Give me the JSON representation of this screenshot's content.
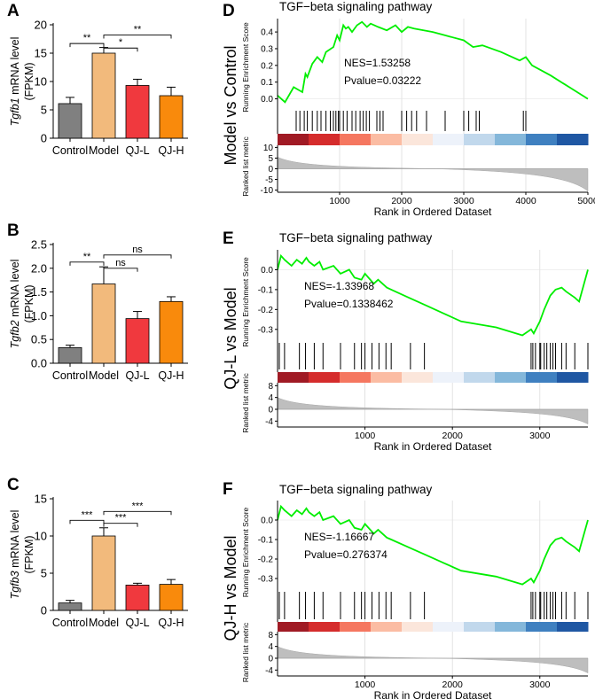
{
  "figure": {
    "bar_ylabel_suffix": "mRNA  level",
    "bar_ylabel_unit": "(FPKM)",
    "gsea_ylabel_res": "Running Enrichment Score",
    "gsea_ylabel_rank": "Ranked list metric",
    "gsea_xlabel": "Rank in Ordered Dataset"
  },
  "colors": {
    "Control": "#808080",
    "Model": "#f2ba7c",
    "QJ-L": "#f0393e",
    "QJ-H": "#f98a0c",
    "es_line": "#00ee00",
    "rank_fill": "#bebebe",
    "heat": [
      "#a01a24",
      "#d52c2c",
      "#f57760",
      "#fbbca3",
      "#fbe6db",
      "#edf2fa",
      "#c1d8ec",
      "#84b7da",
      "#3f80c0",
      "#1f57a3"
    ]
  },
  "chart_data": [
    {
      "panel": "A",
      "type": "bar",
      "gene": "Tgfb1",
      "categories": [
        "Control",
        "Model",
        "QJ-L",
        "QJ-H"
      ],
      "values": [
        6.1,
        15.0,
        9.3,
        7.5
      ],
      "errors": [
        1.1,
        1.0,
        1.1,
        1.5
      ],
      "ylim": [
        0,
        20
      ],
      "yticks": [
        0,
        5,
        10,
        15,
        20
      ],
      "ytick_labels": [
        "0",
        "5",
        "10",
        "15",
        "20"
      ],
      "sig": [
        {
          "from": 0,
          "to": 1,
          "label": "**",
          "y": 16.7
        },
        {
          "from": 1,
          "to": 2,
          "label": "*",
          "y": 15.9
        },
        {
          "from": 1,
          "to": 3,
          "label": "**",
          "y": 18.2
        }
      ]
    },
    {
      "panel": "B",
      "type": "bar",
      "gene": "Tgfb2",
      "categories": [
        "Control",
        "Model",
        "QJ-L",
        "QJ-H"
      ],
      "values": [
        0.33,
        1.67,
        0.94,
        1.3
      ],
      "errors": [
        0.05,
        0.36,
        0.15,
        0.1
      ],
      "ylim": [
        0,
        2.5
      ],
      "yticks": [
        0,
        0.5,
        1,
        1.5,
        2,
        2.5
      ],
      "ytick_labels": [
        "0.0",
        "0.5",
        "1.0",
        "1.5",
        "2.0",
        "2.5"
      ],
      "sig": [
        {
          "from": 0,
          "to": 1,
          "label": "**",
          "y": 2.13
        },
        {
          "from": 1,
          "to": 2,
          "label": "ns",
          "y": 2.0
        },
        {
          "from": 1,
          "to": 3,
          "label": "ns",
          "y": 2.28
        }
      ]
    },
    {
      "panel": "C",
      "type": "bar",
      "gene": "Tgfb3",
      "categories": [
        "Control",
        "Model",
        "QJ-L",
        "QJ-H"
      ],
      "values": [
        1.0,
        10.0,
        3.4,
        3.5
      ],
      "errors": [
        0.35,
        1.1,
        0.25,
        0.65
      ],
      "ylim": [
        0,
        15
      ],
      "yticks": [
        0,
        5,
        10,
        15
      ],
      "ytick_labels": [
        "0",
        "5",
        "10",
        "15"
      ],
      "sig": [
        {
          "from": 0,
          "to": 1,
          "label": "***",
          "y": 12.1
        },
        {
          "from": 1,
          "to": 2,
          "label": "***",
          "y": 11.7
        },
        {
          "from": 1,
          "to": 3,
          "label": "***",
          "y": 13.3
        }
      ]
    },
    {
      "panel": "D",
      "type": "line",
      "title": "TGF−beta signaling pathway",
      "comparison": "Model vs Control",
      "nes_text": "NES=1.53258",
      "pvalue_text": "Pvalue=0.03222",
      "xmax": 5000,
      "xticks": [
        1000,
        2000,
        3000,
        4000,
        5000
      ],
      "xtick_labels": [
        "1000",
        "2000",
        "3000",
        "4000",
        "5000"
      ],
      "es_ylim": [
        -0.05,
        0.48
      ],
      "es_yticks": [
        0,
        0.1,
        0.2,
        0.3,
        0.4
      ],
      "es_ytick_labels": [
        "0.0",
        "0.1",
        "0.2",
        "0.3",
        "0.4"
      ],
      "rank_ylim": [
        -11,
        11
      ],
      "rank_yticks": [
        -10,
        -5,
        0,
        5,
        10
      ],
      "rank_ytick_labels": [
        "-10",
        "-5",
        "0",
        "5",
        "10"
      ],
      "rank_start": 5.5,
      "rank_end": -10.5,
      "es_x": [
        0,
        120,
        260,
        400,
        450,
        480,
        560,
        640,
        720,
        780,
        900,
        960,
        1000,
        1060,
        1100,
        1140,
        1200,
        1280,
        1360,
        1440,
        1500,
        1620,
        1760,
        1900,
        2000,
        2100,
        2200,
        2500,
        2700,
        3000,
        3150,
        3300,
        3600,
        3900,
        4000,
        4100,
        4400,
        4700,
        5000
      ],
      "es_y": [
        0.02,
        -0.02,
        0.07,
        0.04,
        0.15,
        0.13,
        0.21,
        0.25,
        0.22,
        0.28,
        0.31,
        0.38,
        0.35,
        0.44,
        0.42,
        0.43,
        0.4,
        0.44,
        0.46,
        0.43,
        0.45,
        0.43,
        0.41,
        0.44,
        0.4,
        0.43,
        0.42,
        0.4,
        0.38,
        0.35,
        0.31,
        0.32,
        0.28,
        0.23,
        0.25,
        0.2,
        0.14,
        0.07,
        0.0
      ],
      "hits": [
        300,
        360,
        430,
        480,
        560,
        640,
        700,
        780,
        850,
        900,
        940,
        980,
        1000,
        1060,
        1120,
        1200,
        1260,
        1330,
        1380,
        1430,
        1480,
        1600,
        1650,
        1700,
        2000,
        2080,
        2160,
        2240,
        2400,
        2700,
        3000,
        3080,
        3200,
        3250,
        3960,
        4000
      ]
    },
    {
      "panel": "E",
      "type": "line",
      "title": "TGF−beta signaling pathway",
      "comparison": "QJ-L vs Model",
      "nes_text": "NES=-1.33968",
      "pvalue_text": "Pvalue=0.1338462",
      "xmax": 3550,
      "xticks": [
        1000,
        2000,
        3000
      ],
      "xtick_labels": [
        "1000",
        "2000",
        "3000"
      ],
      "es_ylim": [
        -0.35,
        0.1
      ],
      "es_yticks": [
        -0.3,
        -0.2,
        -0.1,
        0
      ],
      "es_ytick_labels": [
        "-0.3",
        "-0.2",
        "-0.1",
        "0.0"
      ],
      "rank_ylim": [
        -6,
        9
      ],
      "rank_yticks": [
        -4,
        0,
        4,
        8
      ],
      "rank_ytick_labels": [
        "-4",
        "0",
        "4",
        "8"
      ],
      "rank_start": 4.0,
      "rank_end": -5.0,
      "es_x": [
        0,
        40,
        80,
        160,
        220,
        280,
        330,
        360,
        420,
        480,
        520,
        640,
        720,
        820,
        880,
        960,
        1000,
        1100,
        1150,
        1250,
        1300,
        1500,
        1700,
        1900,
        2100,
        2500,
        2800,
        2900,
        2930,
        3000,
        3050,
        3120,
        3180,
        3250,
        3300,
        3400,
        3450,
        3550
      ],
      "es_y": [
        0.0,
        0.07,
        0.05,
        0.02,
        0.05,
        0.03,
        0.06,
        0.04,
        0.02,
        0.04,
        0.0,
        0.02,
        -0.02,
        0.0,
        -0.04,
        -0.05,
        -0.02,
        -0.07,
        -0.05,
        -0.09,
        -0.1,
        -0.14,
        -0.18,
        -0.22,
        -0.26,
        -0.29,
        -0.33,
        -0.3,
        -0.32,
        -0.26,
        -0.2,
        -0.13,
        -0.1,
        -0.09,
        -0.11,
        -0.14,
        -0.16,
        0.0
      ],
      "hits": [
        20,
        80,
        250,
        320,
        420,
        520,
        720,
        880,
        960,
        1000,
        1080,
        1160,
        1240,
        1300,
        1520,
        1680,
        2900,
        2920,
        2950,
        3000,
        3010,
        3050,
        3080,
        3120,
        3150,
        3180,
        3250,
        3300,
        3400,
        3550
      ]
    },
    {
      "panel": "F",
      "type": "line",
      "title": "TGF−beta signaling pathway",
      "comparison": "QJ-H vs Model",
      "nes_text": "NES=-1.16667",
      "pvalue_text": "Pvalue=0.276374",
      "xmax": 3550,
      "xticks": [
        1000,
        2000,
        3000
      ],
      "xtick_labels": [
        "1000",
        "2000",
        "3000"
      ],
      "es_ylim": [
        -0.35,
        0.1
      ],
      "es_yticks": [
        -0.3,
        -0.2,
        -0.1,
        0
      ],
      "es_ytick_labels": [
        "-0.3",
        "-0.2",
        "-0.1",
        "0.0"
      ],
      "rank_ylim": [
        -6,
        9
      ],
      "rank_yticks": [
        -4,
        0,
        4,
        8
      ],
      "rank_ytick_labels": [
        "-4",
        "0",
        "4",
        "8"
      ],
      "rank_start": 4.0,
      "rank_end": -5.0,
      "es_x": [
        0,
        40,
        80,
        160,
        220,
        280,
        330,
        360,
        420,
        480,
        520,
        640,
        720,
        820,
        880,
        960,
        1000,
        1100,
        1150,
        1250,
        1300,
        1500,
        1700,
        1900,
        2100,
        2500,
        2800,
        2900,
        2930,
        3000,
        3050,
        3120,
        3180,
        3250,
        3300,
        3400,
        3450,
        3550
      ],
      "es_y": [
        0.0,
        0.07,
        0.05,
        0.02,
        0.05,
        0.03,
        0.06,
        0.04,
        0.02,
        0.04,
        0.0,
        0.02,
        -0.02,
        0.0,
        -0.04,
        -0.05,
        -0.02,
        -0.07,
        -0.05,
        -0.09,
        -0.1,
        -0.14,
        -0.18,
        -0.22,
        -0.26,
        -0.29,
        -0.33,
        -0.3,
        -0.32,
        -0.26,
        -0.2,
        -0.13,
        -0.1,
        -0.09,
        -0.11,
        -0.14,
        -0.16,
        0.0
      ],
      "hits": [
        20,
        80,
        250,
        320,
        420,
        520,
        720,
        880,
        960,
        1000,
        1080,
        1160,
        1240,
        1300,
        1520,
        1680,
        2900,
        2920,
        2950,
        3000,
        3010,
        3050,
        3080,
        3120,
        3150,
        3180,
        3250,
        3300,
        3400,
        3550
      ]
    }
  ]
}
